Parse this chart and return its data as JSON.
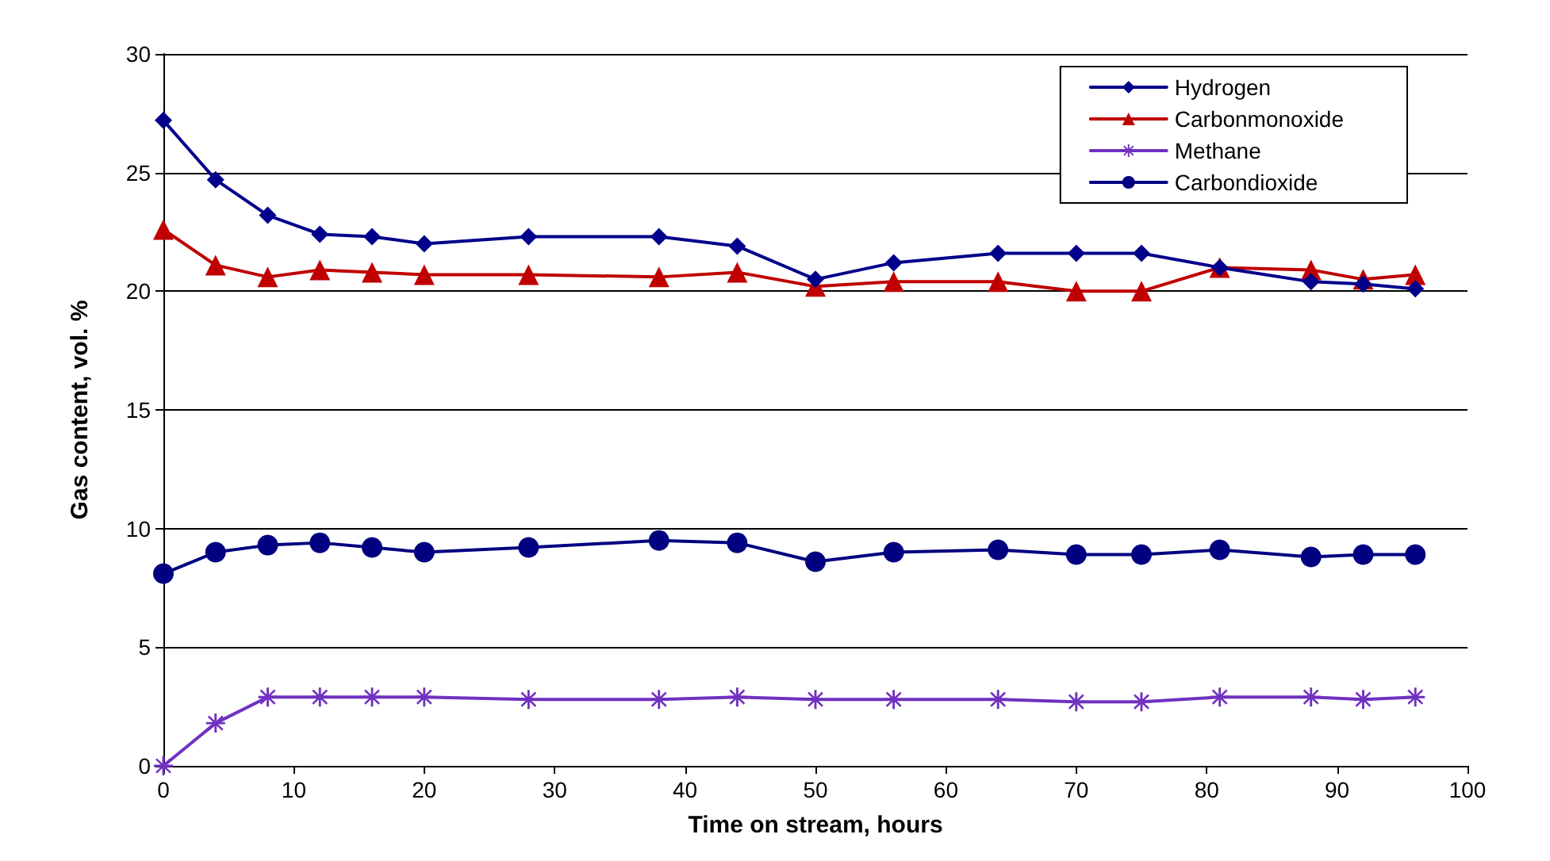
{
  "chart_data": {
    "type": "line",
    "xlabel": "Time on stream, hours",
    "ylabel": "Gas content, vol. %",
    "x": [
      0,
      4,
      8,
      12,
      16,
      20,
      28,
      38,
      44,
      50,
      56,
      64,
      70,
      75,
      81,
      88,
      92,
      96
    ],
    "series": [
      {
        "name": "Hydrogen",
        "color": "#00008b",
        "marker": "diamond",
        "values": [
          27.2,
          24.7,
          23.2,
          22.4,
          22.3,
          22.0,
          22.3,
          22.3,
          21.9,
          20.5,
          21.2,
          21.6,
          21.6,
          21.6,
          21.0,
          20.4,
          20.3,
          20.1
        ]
      },
      {
        "name": "Carbonmonoxide",
        "color": "#c00000",
        "marker": "triangle",
        "values": [
          22.6,
          21.1,
          20.6,
          20.9,
          20.8,
          20.7,
          20.7,
          20.6,
          20.8,
          20.2,
          20.4,
          20.4,
          20.0,
          20.0,
          21.0,
          20.9,
          20.5,
          20.7
        ]
      },
      {
        "name": "Methane",
        "color": "#7030c0",
        "marker": "cross",
        "values": [
          0.0,
          1.8,
          2.9,
          2.9,
          2.9,
          2.9,
          2.8,
          2.8,
          2.9,
          2.8,
          2.8,
          2.8,
          2.7,
          2.7,
          2.9,
          2.9,
          2.8,
          2.9
        ]
      },
      {
        "name": "Carbondioxide",
        "color": "#000080",
        "marker": "circle",
        "values": [
          8.1,
          9.0,
          9.3,
          9.4,
          9.2,
          9.0,
          9.2,
          9.5,
          9.4,
          8.6,
          9.0,
          9.1,
          8.9,
          8.9,
          9.1,
          8.8,
          8.9,
          8.9
        ]
      }
    ],
    "xlim": [
      0,
      100
    ],
    "xticks": [
      0,
      10,
      20,
      30,
      40,
      50,
      60,
      70,
      80,
      90,
      100
    ],
    "ylim": [
      0,
      30
    ],
    "yticks": [
      0,
      5,
      10,
      15,
      20,
      25,
      30
    ],
    "grid": "y",
    "legend": "top right",
    "line_style": "solid"
  }
}
